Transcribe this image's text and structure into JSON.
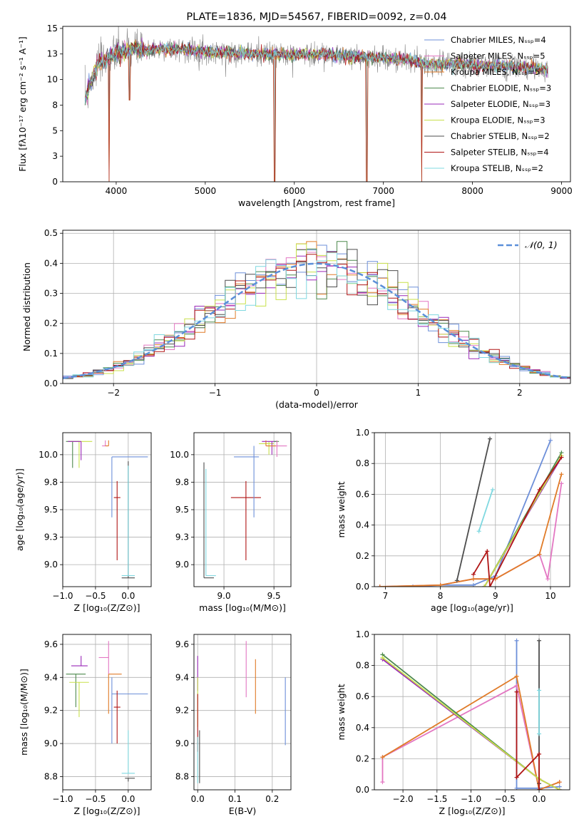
{
  "chart_data": [
    {
      "id": "spectrum",
      "type": "line",
      "title": "PLATE=1836, MJD=54567, FIBERID=0092, z=0.04",
      "xlabel": "wavelength [Angstrom, rest frame]",
      "ylabel": "Flux [fλ10⁻¹⁷ erg cm⁻² s⁻¹ A⁻¹]",
      "xlim": [
        3400,
        9100
      ],
      "ylim": [
        0,
        15.2
      ],
      "xticks": [
        4000,
        5000,
        6000,
        7000,
        8000,
        9000
      ],
      "yticks": [
        0.0,
        2.5,
        5.0,
        7.5,
        10.0,
        12.5,
        15.0
      ],
      "grid": false,
      "legend_position": "upper right",
      "observed": {
        "color": "#808080"
      },
      "series": [
        {
          "name": "Chabrier MILES, Nₛₛₚ=4",
          "color": "#6d8fd9"
        },
        {
          "name": "Salpeter MILES, Nₛₛₚ=5",
          "color": "#e377c2"
        },
        {
          "name": "Kroupa MILES, Nₛₛₚ=5",
          "color": "#e07b28"
        },
        {
          "name": "Chabrier ELODIE, Nₛₛₚ=3",
          "color": "#4e8a4e"
        },
        {
          "name": "Salpeter ELODIE, Nₛₛₚ=3",
          "color": "#9a28b8"
        },
        {
          "name": "Kroupa ELODIE, Nₛₛₚ=3",
          "color": "#c8e04a"
        },
        {
          "name": "Chabrier STELIB, Nₛₛₚ=2",
          "color": "#4d4d4d"
        },
        {
          "name": "Salpeter STELIB, Nₛₛₚ=4",
          "color": "#b01515"
        },
        {
          "name": "Kroupa STELIB, Nₛₛₚ=2",
          "color": "#7fd8e0"
        }
      ],
      "continuum": {
        "x": [
          3650,
          3700,
          3800,
          3900,
          4000,
          4100,
          4200,
          4300,
          4500,
          4700,
          5000,
          5300,
          5600,
          6000,
          6300,
          6600,
          7000,
          7300,
          7500,
          7800,
          8000,
          8300,
          8600,
          8850
        ],
        "y": [
          8.0,
          9.5,
          11.5,
          12.0,
          12.5,
          12.8,
          13.0,
          12.8,
          13.0,
          13.0,
          12.7,
          12.6,
          12.5,
          12.4,
          12.5,
          12.3,
          12.1,
          11.9,
          11.5,
          11.5,
          11.4,
          11.3,
          11.2,
          11.0
        ]
      },
      "drops": [
        {
          "x": 3920,
          "y": 0
        },
        {
          "x": 4150,
          "y": 8.0
        },
        {
          "x": 5780,
          "y": 0
        },
        {
          "x": 6810,
          "y": 0
        },
        {
          "x": 7430,
          "y": 0
        }
      ]
    },
    {
      "id": "residuals",
      "type": "histogram",
      "xlabel": "(data-model)/error",
      "ylabel": "Normed distribution",
      "xlim": [
        -2.5,
        2.5
      ],
      "ylim": [
        0,
        0.51
      ],
      "xticks": [
        -2,
        -1,
        0,
        1,
        2
      ],
      "yticks": [
        0.0,
        0.1,
        0.2,
        0.3,
        0.4,
        0.5
      ],
      "grid": true,
      "legend_position": "upper right",
      "reference": {
        "name": "𝒩(0, 1)",
        "color": "#5b8fd9"
      },
      "bin_width": 0.1
    },
    {
      "id": "age-vs-Z",
      "type": "errorbar",
      "xlabel": "Z [log₁₀(Z/Z⊙)]",
      "ylabel": "age  [log₁₀(age/yr)]",
      "xlim": [
        -1.0,
        0.35
      ],
      "ylim": [
        8.8,
        10.2
      ],
      "xticks": [
        -1.0,
        -0.5,
        0.0
      ],
      "yticks": [
        9.0,
        9.25,
        9.5,
        9.75,
        10.0
      ],
      "grid": true,
      "points": [
        {
          "x": -0.85,
          "y": 10.12,
          "xerr": [
            0.1,
            0.1
          ],
          "yerr": [
            0.24,
            0.0
          ],
          "series": 3
        },
        {
          "x": -0.75,
          "y": 10.12,
          "xerr": [
            0.15,
            0.2
          ],
          "yerr": [
            0.24,
            0.0
          ],
          "series": 5
        },
        {
          "x": -0.72,
          "y": 10.12,
          "xerr": [
            0.2,
            0.0
          ],
          "yerr": [
            0.17,
            0.0
          ],
          "series": 4
        },
        {
          "x": -0.35,
          "y": 10.08,
          "xerr": [
            0.05,
            0.05
          ],
          "yerr": [
            0.0,
            0.05
          ],
          "series": 1
        },
        {
          "x": -0.3,
          "y": 10.08,
          "xerr": [
            0.05,
            0.0
          ],
          "yerr": [
            0.0,
            0.05
          ],
          "series": 2
        },
        {
          "x": -0.25,
          "y": 9.98,
          "xerr": [
            0.0,
            0.55
          ],
          "yerr": [
            0.55,
            0.0
          ],
          "series": 0
        },
        {
          "x": -0.17,
          "y": 9.61,
          "xerr": [
            0.05,
            0.05
          ],
          "yerr": [
            0.57,
            0.15
          ],
          "series": 7
        },
        {
          "x": 0.0,
          "y": 8.88,
          "xerr": [
            0.1,
            0.1
          ],
          "yerr": [
            0.0,
            1.06
          ],
          "series": 6
        },
        {
          "x": 0.0,
          "y": 8.9,
          "xerr": [
            0.1,
            0.1
          ],
          "yerr": [
            0.0,
            1.0
          ],
          "series": 8
        }
      ]
    },
    {
      "id": "age-vs-mass",
      "type": "errorbar",
      "xlabel": "mass [log₁₀(M/M⊙)]",
      "ylabel": "",
      "xlim": [
        8.7,
        9.67
      ],
      "ylim": [
        8.8,
        10.2
      ],
      "xticks": [
        9.0,
        9.5
      ],
      "yticks": [
        9.0,
        9.25,
        9.5,
        9.75,
        10.0
      ],
      "grid": true,
      "points": [
        {
          "x": 8.8,
          "y": 8.88,
          "xerr": [
            0.0,
            0.1
          ],
          "yerr": [
            0.0,
            1.05
          ],
          "series": 6
        },
        {
          "x": 8.82,
          "y": 8.9,
          "xerr": [
            0.0,
            0.1
          ],
          "yerr": [
            0.0,
            0.97
          ],
          "series": 8
        },
        {
          "x": 9.22,
          "y": 9.61,
          "xerr": [
            0.15,
            0.15
          ],
          "yerr": [
            0.57,
            0.15
          ],
          "series": 7
        },
        {
          "x": 9.3,
          "y": 9.98,
          "xerr": [
            0.2,
            0.05
          ],
          "yerr": [
            0.55,
            0.1
          ],
          "series": 0
        },
        {
          "x": 9.45,
          "y": 10.1,
          "xerr": [
            0.1,
            0.05
          ],
          "yerr": [
            0.1,
            0.02
          ],
          "series": 5
        },
        {
          "x": 9.48,
          "y": 10.12,
          "xerr": [
            0.1,
            0.05
          ],
          "yerr": [
            0.12,
            0.0
          ],
          "series": 4
        },
        {
          "x": 9.5,
          "y": 10.12,
          "xerr": [
            0.0,
            0.05
          ],
          "yerr": [
            0.0,
            0.0
          ],
          "series": 3
        },
        {
          "x": 9.53,
          "y": 10.08,
          "xerr": [
            0.1,
            0.1
          ],
          "yerr": [
            0.1,
            0.05
          ],
          "series": 1
        },
        {
          "x": 9.42,
          "y": 10.08,
          "xerr": [
            0.0,
            0.1
          ],
          "yerr": [
            0.0,
            0.05
          ],
          "series": 2
        }
      ]
    },
    {
      "id": "mass-weight-vs-age",
      "type": "line",
      "xlabel": "age  [log₁₀(age/yr)]",
      "ylabel": "mass weight",
      "xlim": [
        6.8,
        10.35
      ],
      "ylim": [
        0,
        1.0
      ],
      "xticks": [
        7,
        8,
        9,
        10
      ],
      "yticks": [
        0.0,
        0.2,
        0.4,
        0.6,
        0.8,
        1.0
      ],
      "grid": true,
      "series": [
        {
          "series": 0,
          "x": [
            7.5,
            8.0,
            8.6,
            9.0,
            10.0
          ],
          "y": [
            0.0,
            0.01,
            0.01,
            0.07,
            0.95
          ]
        },
        {
          "series": 1,
          "x": [
            6.9,
            8.0,
            8.6,
            9.0,
            9.8,
            9.95,
            10.2
          ],
          "y": [
            0.0,
            0.01,
            0.05,
            0.05,
            0.21,
            0.05,
            0.67
          ]
        },
        {
          "series": 2,
          "x": [
            6.9,
            8.0,
            8.6,
            9.0,
            9.8,
            10.2
          ],
          "y": [
            0.0,
            0.01,
            0.05,
            0.05,
            0.21,
            0.73
          ]
        },
        {
          "series": 3,
          "x": [
            8.8,
            10.2
          ],
          "y": [
            0.0,
            0.87
          ]
        },
        {
          "series": 4,
          "x": [
            8.8,
            10.2
          ],
          "y": [
            0.0,
            0.84
          ]
        },
        {
          "series": 5,
          "x": [
            8.8,
            10.2
          ],
          "y": [
            0.0,
            0.85
          ]
        },
        {
          "series": 6,
          "x": [
            8.3,
            8.9
          ],
          "y": [
            0.04,
            0.96
          ]
        },
        {
          "series": 7,
          "x": [
            8.6,
            8.85,
            8.9,
            9.8,
            10.2
          ],
          "y": [
            0.08,
            0.23,
            0.0,
            0.63,
            0.84
          ]
        },
        {
          "series": 8,
          "x": [
            8.7,
            8.95
          ],
          "y": [
            0.36,
            0.63
          ]
        }
      ]
    },
    {
      "id": "mass-vs-Z",
      "type": "errorbar",
      "xlabel": "Z [log₁₀(Z/Z⊙)]",
      "ylabel": "mass [log₁₀(M/M⊙)]",
      "xlim": [
        -1.0,
        0.35
      ],
      "ylim": [
        8.72,
        9.66
      ],
      "xticks": [
        -1.0,
        -0.5,
        0.0
      ],
      "yticks": [
        8.8,
        9.0,
        9.2,
        9.4,
        9.6
      ],
      "grid": true,
      "points": [
        {
          "x": -0.8,
          "y": 9.42,
          "xerr": [
            0.15,
            0.15
          ],
          "yerr": [
            0.2,
            0.0
          ],
          "series": 3
        },
        {
          "x": -0.72,
          "y": 9.47,
          "xerr": [
            0.15,
            0.1
          ],
          "yerr": [
            0.0,
            0.06
          ],
          "series": 4
        },
        {
          "x": -0.75,
          "y": 9.37,
          "xerr": [
            0.15,
            0.15
          ],
          "yerr": [
            0.21,
            0.0
          ],
          "series": 5
        },
        {
          "x": -0.3,
          "y": 9.52,
          "xerr": [
            0.15,
            0.0
          ],
          "yerr": [
            0.1,
            0.1
          ],
          "series": 1
        },
        {
          "x": -0.3,
          "y": 9.42,
          "xerr": [
            0.0,
            0.2
          ],
          "yerr": [
            0.24,
            0.0
          ],
          "series": 2
        },
        {
          "x": -0.25,
          "y": 9.3,
          "xerr": [
            0.0,
            0.55
          ],
          "yerr": [
            0.3,
            0.1
          ],
          "series": 0
        },
        {
          "x": -0.17,
          "y": 9.22,
          "xerr": [
            0.05,
            0.05
          ],
          "yerr": [
            0.22,
            0.1
          ],
          "series": 7
        },
        {
          "x": 0.0,
          "y": 8.79,
          "xerr": [
            0.05,
            0.1
          ],
          "yerr": [
            0.02,
            0.0
          ],
          "series": 6
        },
        {
          "x": 0.0,
          "y": 8.82,
          "xerr": [
            0.1,
            0.1
          ],
          "yerr": [
            0.0,
            0.26
          ],
          "series": 8
        }
      ]
    },
    {
      "id": "mass-vs-EBV",
      "type": "errorbar",
      "xlabel": "E(B-V)",
      "ylabel": "",
      "xlim": [
        -0.01,
        0.25
      ],
      "ylim": [
        8.72,
        9.66
      ],
      "xticks": [
        0.0,
        0.1,
        0.2
      ],
      "yticks": [
        8.8,
        9.0,
        9.2,
        9.4,
        9.6
      ],
      "grid": true,
      "points": [
        {
          "x": 0.0,
          "y": 9.42,
          "xerr": [
            0.0,
            0.0
          ],
          "yerr": [
            0.1,
            0.11
          ],
          "series": 4
        },
        {
          "x": 0.0,
          "y": 9.3,
          "xerr": [
            0.0,
            0.0
          ],
          "yerr": [
            0.2,
            0.1
          ],
          "series": 5
        },
        {
          "x": 0.0,
          "y": 9.2,
          "xerr": [
            0.0,
            0.0
          ],
          "yerr": [
            0.25,
            0.1
          ],
          "series": 7
        },
        {
          "x": 0.005,
          "y": 8.92,
          "xerr": [
            0.0,
            0.0
          ],
          "yerr": [
            0.16,
            0.16
          ],
          "series": 6
        },
        {
          "x": 0.0,
          "y": 8.9,
          "xerr": [
            0.0,
            0.0
          ],
          "yerr": [
            0.14,
            0.14
          ],
          "series": 8
        },
        {
          "x": 0.13,
          "y": 9.45,
          "xerr": [
            0.0,
            0.0
          ],
          "yerr": [
            0.17,
            0.17
          ],
          "series": 1
        },
        {
          "x": 0.155,
          "y": 9.35,
          "xerr": [
            0.0,
            0.0
          ],
          "yerr": [
            0.17,
            0.16
          ],
          "series": 2
        },
        {
          "x": 0.235,
          "y": 9.2,
          "xerr": [
            0.0,
            0.0
          ],
          "yerr": [
            0.21,
            0.2
          ],
          "series": 0
        }
      ]
    },
    {
      "id": "mass-weight-vs-Z",
      "type": "line",
      "xlabel": "Z [log₁₀(Z/Z⊙)]",
      "ylabel": "mass weight",
      "xlim": [
        -2.42,
        0.45
      ],
      "ylim": [
        0,
        1.0
      ],
      "xticks": [
        -2.0,
        -1.5,
        -1.0,
        -0.5,
        0.0
      ],
      "yticks": [
        0.0,
        0.2,
        0.4,
        0.6,
        0.8,
        1.0
      ],
      "grid": true,
      "series": [
        {
          "series": 0,
          "x": [
            -0.33,
            -0.33,
            0.0,
            0.3
          ],
          "y": [
            0.96,
            0.01,
            0.01,
            0.02
          ]
        },
        {
          "series": 1,
          "x": [
            -2.3,
            -2.3,
            -0.33,
            0.0,
            0.3
          ],
          "y": [
            0.05,
            0.21,
            0.67,
            0.0,
            0.05
          ]
        },
        {
          "series": 2,
          "x": [
            -2.3,
            -0.33,
            0.0,
            0.3
          ],
          "y": [
            0.21,
            0.73,
            0.0,
            0.05
          ]
        },
        {
          "series": 3,
          "x": [
            -2.3,
            0.0,
            0.3
          ],
          "y": [
            0.87,
            0.07,
            0.0
          ]
        },
        {
          "series": 4,
          "x": [
            -2.3,
            0.0,
            0.3
          ],
          "y": [
            0.84,
            0.07,
            0.0
          ]
        },
        {
          "series": 5,
          "x": [
            -2.3,
            0.0,
            0.3
          ],
          "y": [
            0.85,
            0.07,
            0.0
          ]
        },
        {
          "series": 6,
          "x": [
            0.0,
            0.0
          ],
          "y": [
            0.96,
            0.04
          ]
        },
        {
          "series": 7,
          "x": [
            -0.33,
            -0.33,
            0.0,
            0.0,
            0.0
          ],
          "y": [
            0.63,
            0.08,
            0.23,
            0.0,
            0.0
          ]
        },
        {
          "series": 8,
          "x": [
            0.0,
            0.0
          ],
          "y": [
            0.64,
            0.36
          ]
        }
      ]
    }
  ]
}
